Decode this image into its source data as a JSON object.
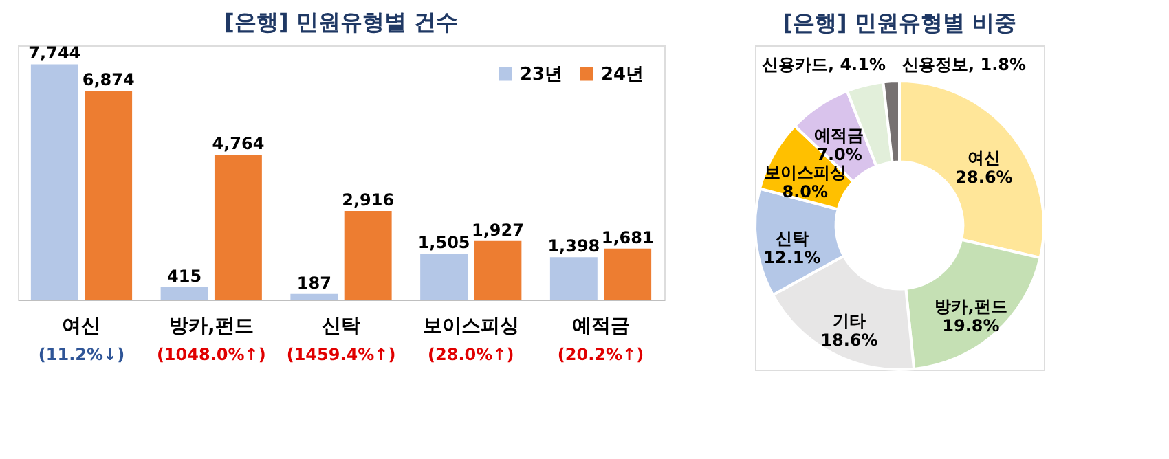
{
  "chart_data": [
    {
      "type": "bar",
      "title": "[은행] 민원유형별 건수",
      "categories": [
        "여신",
        "방카,펀드",
        "신탁",
        "보이스피싱",
        "예적금"
      ],
      "series": [
        {
          "name": "23년",
          "color": "#b4c7e7",
          "values": [
            7744,
            415,
            187,
            1505,
            1398
          ],
          "value_labels": [
            "7,744",
            "415",
            "187",
            "1,505",
            "1,398"
          ]
        },
        {
          "name": "24년",
          "color": "#ed7d31",
          "values": [
            6874,
            4764,
            2916,
            1927,
            1681
          ],
          "value_labels": [
            "6,874",
            "4,764",
            "2,916",
            "1,927",
            "1,681"
          ]
        }
      ],
      "legend": "top right",
      "annotations": [
        "(11.2%↓)",
        "(1048.0%↑)",
        "(1459.4%↑)",
        "(28.0%↑)",
        "(20.2%↑)"
      ]
    },
    {
      "type": "donut",
      "title": "[은행] 민원유형별 비중",
      "categories": [
        "여신",
        "방카,펀드",
        "기타",
        "신탁",
        "보이스피싱",
        "예적금",
        "신용카드",
        "신용정보"
      ],
      "values": [
        28.6,
        19.8,
        18.6,
        12.1,
        8.0,
        7.0,
        4.1,
        1.8
      ],
      "value_labels": [
        "28.6%",
        "19.8%",
        "18.6%",
        "12.1%",
        "8.0%",
        "7.0%",
        "4.1%",
        "1.8%"
      ],
      "colors": [
        "#ffe699",
        "#c5e0b4",
        "#e7e6e6",
        "#b4c7e7",
        "#ffc000",
        "#d9c3ec",
        "#e2efda",
        "#767171"
      ]
    }
  ]
}
